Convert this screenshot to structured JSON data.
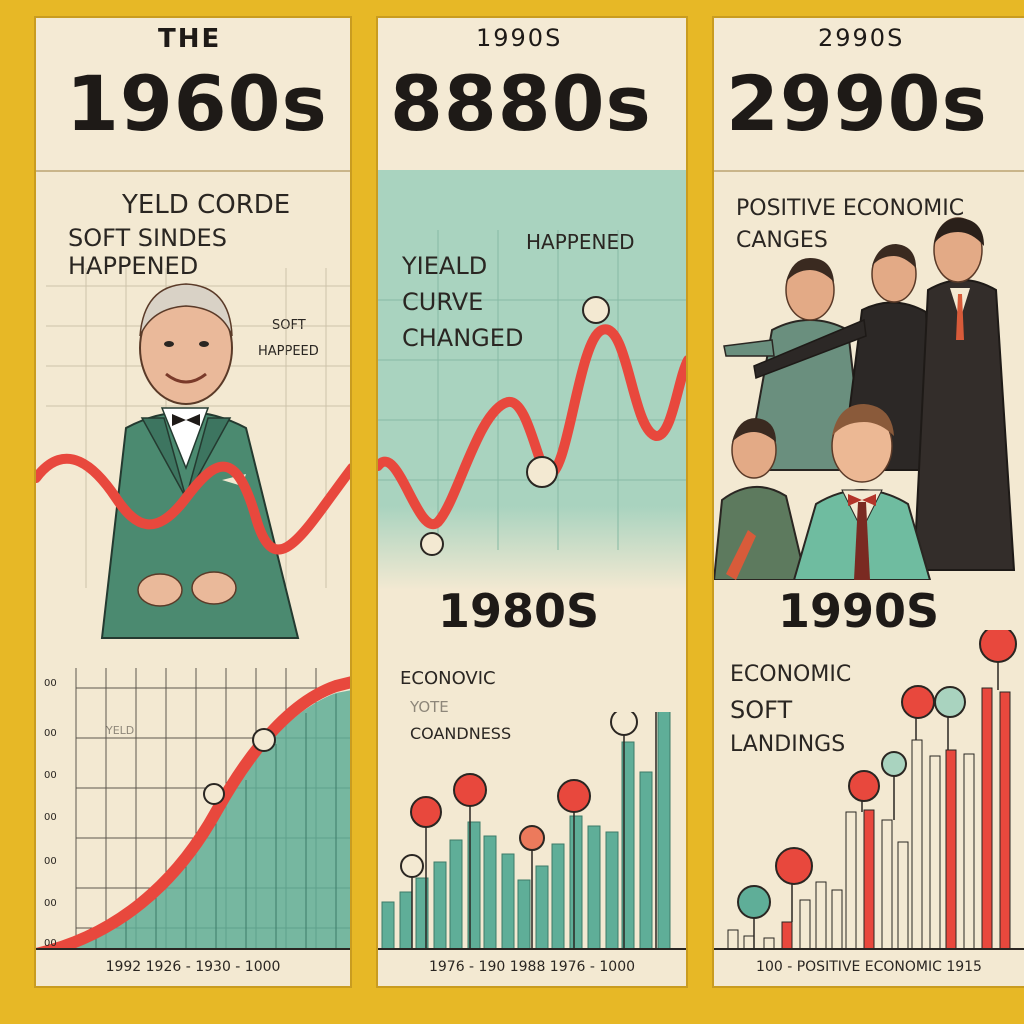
{
  "colors": {
    "background": "#e7b826",
    "paper": "#f3e9d2",
    "teal": "#5fae98",
    "red": "#e8483d",
    "mint": "#a9d3bf",
    "suit_green": "#4b8a70",
    "dark": "#1e1a17"
  },
  "panel1": {
    "kicker": "THE",
    "title": "1960s",
    "caption_line1": "YELD CORDE",
    "caption_line2": "SOFT SINDES HAPPENED",
    "note_line1": "SOFT",
    "note_line2": "HAPPEED",
    "y_ticks": [
      "00",
      "00",
      "00",
      "00",
      "00",
      "00",
      "00"
    ],
    "axis_label": "YELD",
    "footer": "1992 1926 - 1930 - 1000"
  },
  "panel2": {
    "kicker": "1990S",
    "title": "8880s",
    "happened": "HAPPENED",
    "yield_line1": "YIEALD",
    "yield_line2": "CURVE",
    "yield_line3": "CHANGED",
    "decade": "1980S",
    "econ_line1": "ECONOVIC",
    "econ_line2": "YOTE",
    "econ_line3": "COANDNESS",
    "footer": "1976 - 190 1988 1976 - 1000"
  },
  "panel3": {
    "kicker": "2990S",
    "title": "2990s",
    "caption_line1": "POSITIVE ECONOMIC",
    "caption_line2": "CANGES",
    "decade": "1990S",
    "econ_line1": "ECONOMIC",
    "econ_line2": "SOFT",
    "econ_line3": "LANDINGS",
    "footer": "100 - POSITIVE ECONOMIC 1915"
  }
}
